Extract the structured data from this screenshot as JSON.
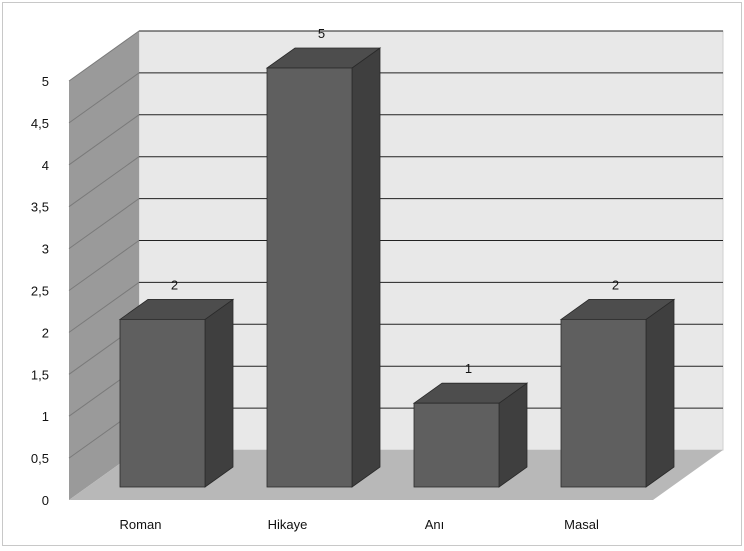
{
  "chart_data": {
    "type": "bar",
    "style": "3d-column",
    "categories": [
      "Roman",
      "Hikaye",
      "Anı",
      "Masal"
    ],
    "values": [
      2,
      5,
      1,
      2
    ],
    "data_labels": [
      "2",
      "5",
      "1",
      "2"
    ],
    "y_ticks": [
      "0",
      "0,5",
      "1",
      "1,5",
      "2",
      "2,5",
      "3",
      "3,5",
      "4",
      "4,5",
      "5"
    ],
    "ylim": [
      0,
      5
    ],
    "grid": true,
    "legend": "none",
    "colors": {
      "bar_front": "#5f5f5f",
      "bar_side": "#3f3f3f",
      "bar_top": "#4d4d4d",
      "back_wall": "#e8e8e8",
      "side_wall": "#9a9a9a",
      "floor": "#b8b8b8",
      "gridline": "#222222"
    }
  }
}
